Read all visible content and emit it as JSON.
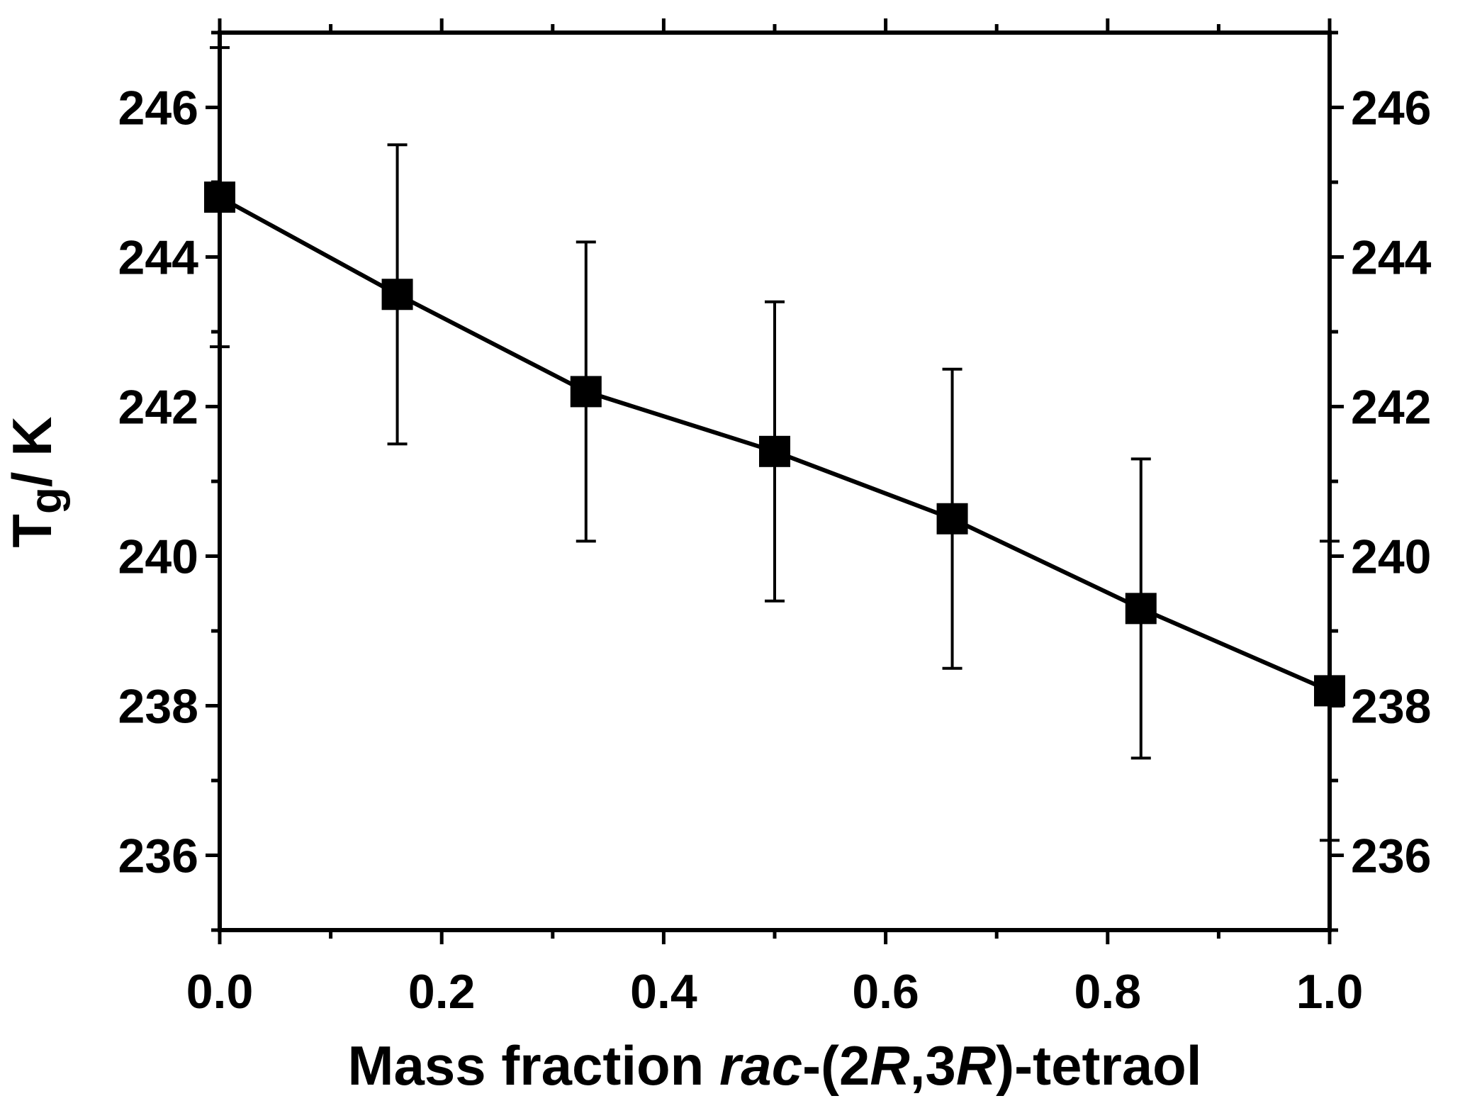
{
  "chart_data": {
    "type": "scatter",
    "title": "",
    "xlabel_parts": [
      {
        "text": "Mass fraction ",
        "italic": false
      },
      {
        "text": "rac",
        "italic": true
      },
      {
        "text": "-(2",
        "italic": false
      },
      {
        "text": "R",
        "italic": true
      },
      {
        "text": ",3",
        "italic": false
      },
      {
        "text": "R",
        "italic": true
      },
      {
        "text": ")-tetraol",
        "italic": false
      }
    ],
    "ylabel_main": "T",
    "ylabel_sub": "g",
    "ylabel_unit": "/ K",
    "xlim": [
      0.0,
      1.0
    ],
    "ylim": [
      235,
      247
    ],
    "x_ticks": [
      "0.0",
      "0.2",
      "0.4",
      "0.6",
      "0.8",
      "1.0"
    ],
    "y_ticks": [
      "236",
      "238",
      "240",
      "242",
      "244",
      "246"
    ],
    "right_axis_labels": true,
    "grid": false,
    "marker": "square",
    "line": "connected",
    "color": "#000000",
    "series": [
      {
        "x": [
          0.0,
          0.16,
          0.33,
          0.5,
          0.66,
          0.83,
          1.0
        ],
        "y": [
          244.8,
          243.5,
          242.2,
          241.4,
          240.5,
          239.3,
          238.2
        ],
        "error": [
          2.0,
          2.0,
          2.0,
          2.0,
          2.0,
          2.0,
          2.0
        ]
      }
    ]
  }
}
